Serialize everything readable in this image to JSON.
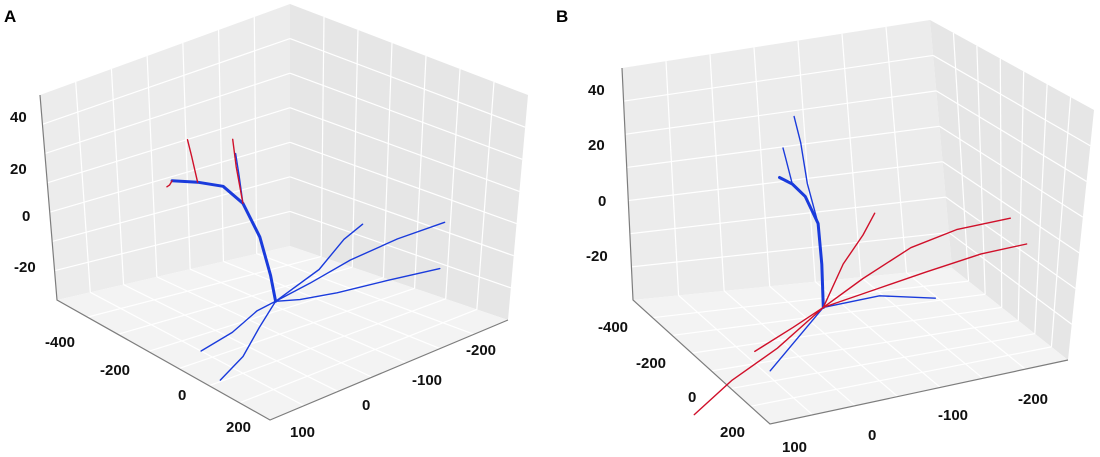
{
  "figure": {
    "panels": [
      {
        "label": "A"
      },
      {
        "label": "B"
      }
    ]
  },
  "colors": {
    "blue": "#1a3bdc",
    "red": "#d0102a",
    "pane": "#ebebeb"
  },
  "chart_data": [
    {
      "type": "scatter",
      "panel": "A",
      "title": "",
      "xlabel": "",
      "ylabel": "",
      "zlabel": "",
      "z_ticks": [
        "40",
        "20",
        "0",
        "-20"
      ],
      "x_ticks": [
        "-400",
        "-200",
        "0",
        "200"
      ],
      "y_ticks": [
        "100",
        "0",
        "-100",
        "-200"
      ],
      "zlim": [
        -35,
        45
      ],
      "xlim": [
        -500,
        250
      ],
      "ylim": [
        -250,
        120
      ],
      "grid": true,
      "series": [
        {
          "color": "blue",
          "branches": [
            [
              [
                -450,
                -40,
                5
              ],
              [
                -350,
                -35,
                10
              ],
              [
                -250,
                -30,
                14
              ],
              [
                -170,
                -25,
                12
              ],
              [
                -100,
                -20,
                3
              ],
              [
                -40,
                -10,
                -8
              ],
              [
                0,
                0,
                -15
              ]
            ],
            [
              [
                0,
                0,
                -15
              ],
              [
                40,
                -20,
                -14
              ],
              [
                80,
                -60,
                -13
              ],
              [
                120,
                -120,
                -12
              ],
              [
                170,
                -180,
                -11
              ]
            ],
            [
              [
                0,
                0,
                -15
              ],
              [
                30,
                -40,
                -10
              ],
              [
                60,
                -90,
                -4
              ],
              [
                90,
                -150,
                0
              ],
              [
                120,
                -210,
                2
              ]
            ],
            [
              [
                0,
                0,
                -15
              ],
              [
                10,
                30,
                -22
              ],
              [
                20,
                60,
                -30
              ],
              [
                30,
                100,
                -35
              ]
            ],
            [
              [
                0,
                0,
                -15
              ],
              [
                -20,
                20,
                -18
              ],
              [
                -40,
                50,
                -25
              ],
              [
                -60,
                90,
                -30
              ]
            ],
            [
              [
                -170,
                -25,
                12
              ],
              [
                -150,
                -10,
                25
              ],
              [
                -140,
                0,
                35
              ]
            ],
            [
              [
                0,
                0,
                -15
              ],
              [
                40,
                -50,
                -5
              ],
              [
                60,
                -80,
                5
              ],
              [
                80,
                -100,
                10
              ]
            ]
          ]
        },
        {
          "color": "red",
          "branches": [
            [
              [
                -450,
                -40,
                5
              ],
              [
                -470,
                -45,
                2
              ],
              [
                -490,
                -50,
                0
              ]
            ],
            [
              [
                -350,
                -35,
                10
              ],
              [
                -360,
                -30,
                20
              ],
              [
                -370,
                -28,
                26
              ]
            ],
            [
              [
                -170,
                -25,
                12
              ],
              [
                -160,
                -10,
                28
              ],
              [
                -150,
                0,
                40
              ]
            ]
          ]
        }
      ]
    },
    {
      "type": "scatter",
      "panel": "B",
      "title": "",
      "xlabel": "",
      "ylabel": "",
      "zlabel": "",
      "z_ticks": [
        "40",
        "20",
        "0",
        "-20"
      ],
      "x_ticks": [
        "-400",
        "-200",
        "0",
        "200"
      ],
      "y_ticks": [
        "100",
        "0",
        "-100",
        "-200"
      ],
      "zlim": [
        -35,
        45
      ],
      "xlim": [
        -500,
        250
      ],
      "ylim": [
        -250,
        120
      ],
      "grid": true,
      "series": [
        {
          "color": "blue",
          "branches": [
            [
              [
                -450,
                -40,
                5
              ],
              [
                -350,
                -35,
                8
              ],
              [
                -250,
                -30,
                9
              ],
              [
                -150,
                -25,
                5
              ],
              [
                -80,
                -15,
                -5
              ],
              [
                0,
                0,
                -15
              ]
            ],
            [
              [
                -150,
                -25,
                5
              ],
              [
                -140,
                -10,
                20
              ],
              [
                -130,
                0,
                35
              ],
              [
                -120,
                10,
                45
              ]
            ],
            [
              [
                -350,
                -35,
                8
              ],
              [
                -340,
                -25,
                18
              ],
              [
                -330,
                -20,
                22
              ]
            ],
            [
              [
                0,
                0,
                -15
              ],
              [
                -10,
                30,
                -25
              ],
              [
                -20,
                60,
                -35
              ]
            ],
            [
              [
                0,
                0,
                -15
              ],
              [
                40,
                -60,
                -12
              ],
              [
                80,
                -120,
                -14
              ]
            ]
          ]
        },
        {
          "color": "red",
          "branches": [
            [
              [
                0,
                0,
                -15
              ],
              [
                40,
                -40,
                -5
              ],
              [
                80,
                -90,
                5
              ],
              [
                110,
                -140,
                10
              ],
              [
                140,
                -200,
                12
              ]
            ],
            [
              [
                0,
                0,
                -15
              ],
              [
                30,
                -60,
                -10
              ],
              [
                70,
                -110,
                -5
              ],
              [
                110,
                -170,
                0
              ],
              [
                140,
                -220,
                2
              ]
            ],
            [
              [
                0,
                0,
                -15
              ],
              [
                20,
                60,
                -25
              ],
              [
                40,
                120,
                -32
              ],
              [
                60,
                170,
                -40
              ]
            ],
            [
              [
                0,
                0,
                -15
              ],
              [
                -30,
                30,
                -22
              ],
              [
                -60,
                70,
                -30
              ]
            ],
            [
              [
                0,
                0,
                -15
              ],
              [
                20,
                -20,
                0
              ],
              [
                40,
                -40,
                10
              ],
              [
                60,
                -50,
                18
              ]
            ]
          ]
        }
      ]
    }
  ]
}
